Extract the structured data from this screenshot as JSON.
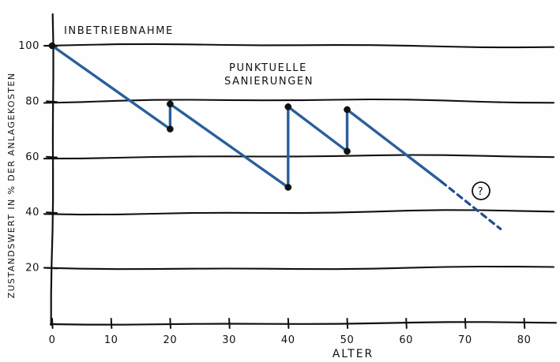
{
  "chart_data": {
    "type": "line",
    "title": "",
    "xlabel": "ALTER",
    "ylabel": "ZUSTANDSWERT IN % DER ANLAGEKOSTEN",
    "xlim": [
      0,
      85
    ],
    "ylim": [
      0,
      110
    ],
    "xticks": [
      0,
      10,
      20,
      30,
      40,
      50,
      60,
      70,
      80
    ],
    "xtick_labels": [
      "0",
      "10",
      "20",
      "30",
      "40",
      "50",
      "60",
      "70",
      "80"
    ],
    "yticks": [
      20,
      40,
      60,
      80,
      100
    ],
    "ytick_labels": [
      "20",
      "40",
      "60",
      "80",
      "100"
    ],
    "grid": true,
    "series": [
      {
        "name": "",
        "style": "solid",
        "color": "#2a5f9c",
        "points": [
          {
            "x": 0,
            "y": 100
          },
          {
            "x": 20,
            "y": 70
          },
          {
            "x": 20,
            "y": 79
          },
          {
            "x": 40,
            "y": 49
          },
          {
            "x": 40,
            "y": 78
          },
          {
            "x": 50,
            "y": 62
          },
          {
            "x": 50,
            "y": 77
          },
          {
            "x": 66,
            "y": 51
          }
        ],
        "markers": [
          {
            "x": 0,
            "y": 100
          },
          {
            "x": 20,
            "y": 70
          },
          {
            "x": 20,
            "y": 79
          },
          {
            "x": 40,
            "y": 49
          },
          {
            "x": 40,
            "y": 78
          },
          {
            "x": 50,
            "y": 62
          },
          {
            "x": 50,
            "y": 77
          }
        ]
      },
      {
        "name": "",
        "style": "dashed",
        "color": "#1f4f8f",
        "points": [
          {
            "x": 66,
            "y": 51
          },
          {
            "x": 76,
            "y": 34
          }
        ]
      }
    ],
    "annotations": [
      {
        "text": "INBETRIEBNAHME"
      },
      {
        "text": "PUNKTUELLE"
      },
      {
        "text": "SANIERUNGEN"
      },
      {
        "text": "?"
      }
    ]
  }
}
